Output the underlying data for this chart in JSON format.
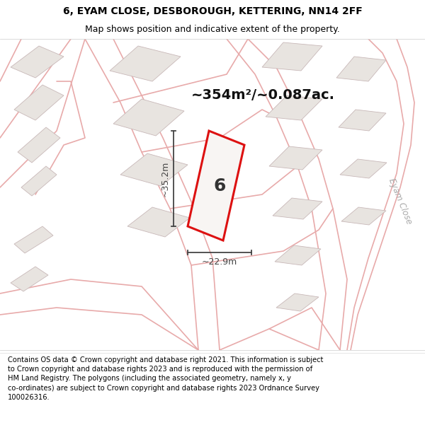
{
  "title_line1": "6, EYAM CLOSE, DESBOROUGH, KETTERING, NN14 2FF",
  "title_line2": "Map shows position and indicative extent of the property.",
  "area_text": "~354m²/~0.087ac.",
  "plot_number": "6",
  "dim_width": "~22.9m",
  "dim_height": "~35.2m",
  "street_label": "Eyam Close",
  "footer_text": "Contains OS data © Crown copyright and database right 2021. This information is subject to Crown copyright and database rights 2023 and is reproduced with the permission of HM Land Registry. The polygons (including the associated geometry, namely x, y co-ordinates) are subject to Crown copyright and database rights 2023 Ordnance Survey 100026316.",
  "map_bg": "#ffffff",
  "plot_fill": "#f5f2f0",
  "road_color": "#e8aaaa",
  "plot_outline_color": "#dd1111",
  "building_fill": "#e8e4e0",
  "building_outline": "#c8b8b8",
  "road_outline_color": "#e8aaaa",
  "dim_color": "#444444",
  "eyam_close_color": "#aaaaaa",
  "title_color": "#000000",
  "footer_color": "#000000"
}
